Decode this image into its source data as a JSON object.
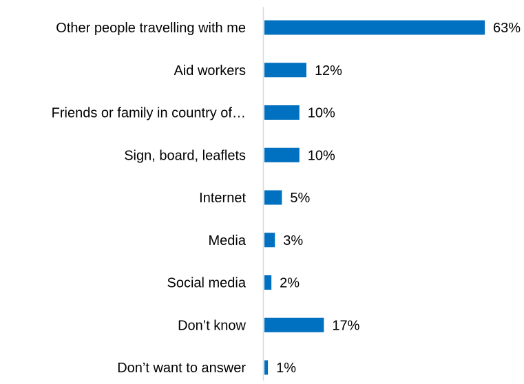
{
  "chart_data": {
    "type": "bar",
    "orientation": "horizontal",
    "title": "",
    "xlabel": "",
    "ylabel": "",
    "categories": [
      "Other people travelling with me",
      "Aid workers",
      "Friends or family in country of…",
      "Sign, board, leaflets",
      "Internet",
      "Media",
      "Social media",
      "Don’t know",
      "Don’t want to answer"
    ],
    "values": [
      63,
      12,
      10,
      10,
      5,
      3,
      2,
      17,
      1
    ],
    "data_labels": [
      "63%",
      "12%",
      "10%",
      "10%",
      "5%",
      "3%",
      "2%",
      "17%",
      "1%"
    ],
    "unit": "%",
    "xlim": [
      0,
      63
    ],
    "grid": false,
    "legend": "none",
    "bar_color": "#0070C0",
    "axis_color": "#D9D9D9",
    "text_color": "#000000"
  }
}
